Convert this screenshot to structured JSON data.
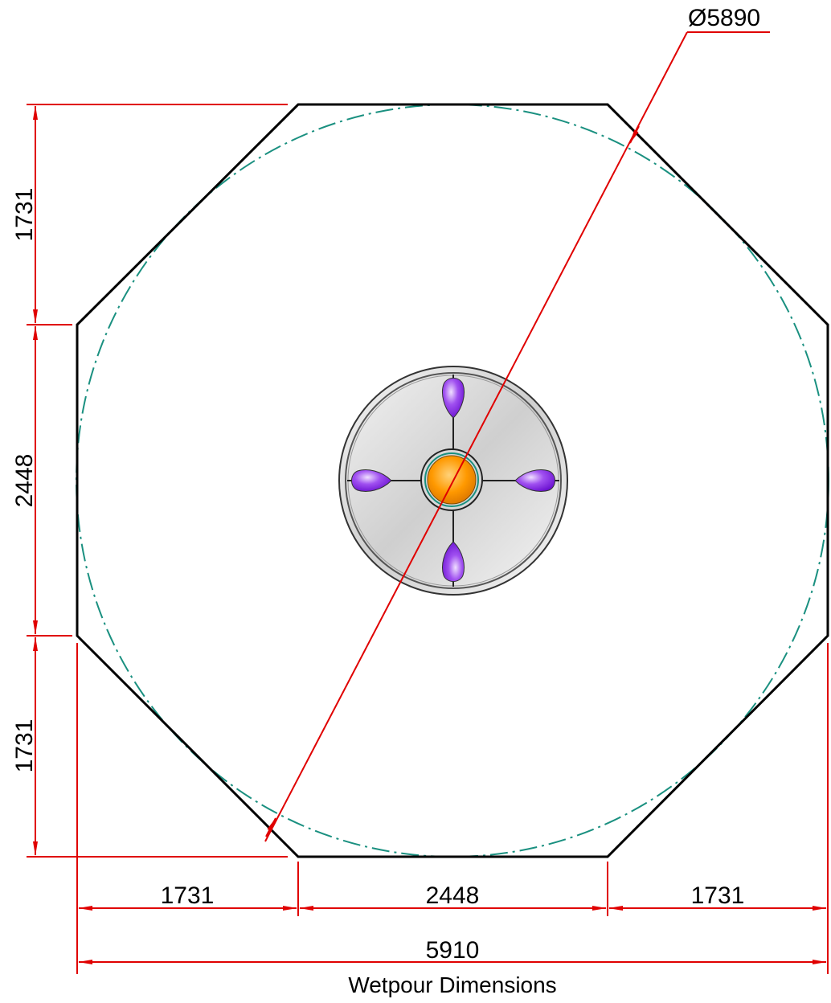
{
  "diagram": {
    "title": "Wetpour Dimensions",
    "diameter_label": "Ø5890",
    "dimensions": {
      "left_top": "1731",
      "left_middle": "2448",
      "left_bottom": "1731",
      "bottom_left": "1731",
      "bottom_middle": "2448",
      "bottom_right": "1731",
      "overall_width": "5910"
    }
  },
  "colors": {
    "dimension_line": "#e00000",
    "outline": "#000000",
    "circle_dashed": "#1a9080",
    "seat": "#8a2be2",
    "hub": "#ff9900"
  },
  "icons": {
    "roundabout": "roundabout-icon"
  }
}
